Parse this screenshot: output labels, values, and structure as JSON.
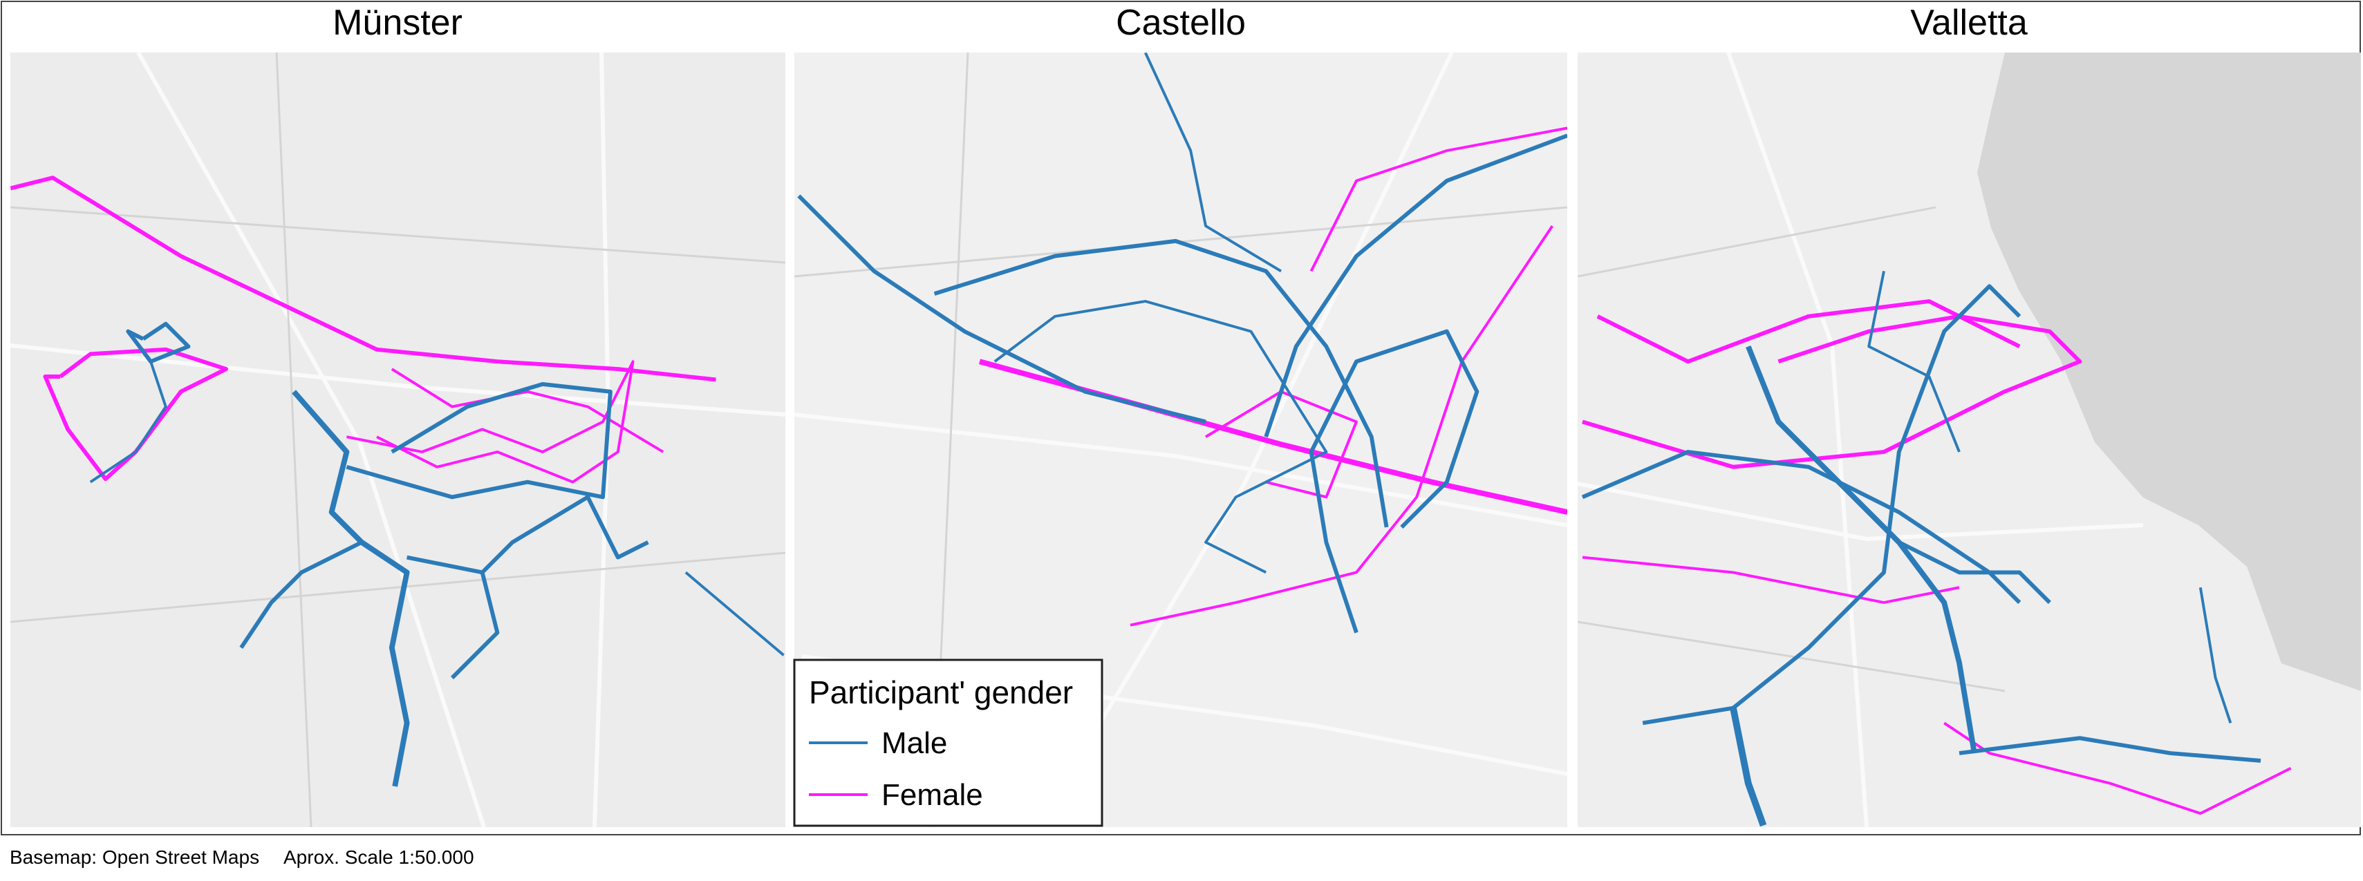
{
  "panels": [
    {
      "title": "Münster"
    },
    {
      "title": "Castello"
    },
    {
      "title": "Valletta"
    }
  ],
  "legend": {
    "title": "Participant' gender",
    "items": [
      {
        "label": "Male",
        "color": "#2b7bb9"
      },
      {
        "label": "Female",
        "color": "#ff1aff"
      }
    ]
  },
  "footer": {
    "basemap": "Basemap: Open Street Maps",
    "scale": "Aprox. Scale 1:50.000"
  }
}
